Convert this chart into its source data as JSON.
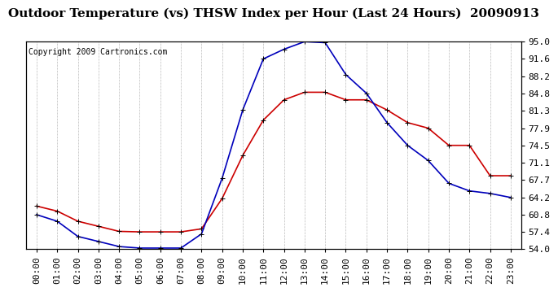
{
  "title": "Outdoor Temperature (vs) THSW Index per Hour (Last 24 Hours)  20090913",
  "copyright": "Copyright 2009 Cartronics.com",
  "background_color": "#ffffff",
  "plot_background": "#ffffff",
  "grid_color": "#aaaaaa",
  "x_labels": [
    "00:00",
    "01:00",
    "02:00",
    "03:00",
    "04:00",
    "05:00",
    "06:00",
    "07:00",
    "08:00",
    "09:00",
    "10:00",
    "11:00",
    "12:00",
    "13:00",
    "14:00",
    "15:00",
    "16:00",
    "17:00",
    "18:00",
    "19:00",
    "20:00",
    "21:00",
    "22:00",
    "23:00"
  ],
  "y_ticks": [
    54.0,
    57.4,
    60.8,
    64.2,
    67.7,
    71.1,
    74.5,
    77.9,
    81.3,
    84.8,
    88.2,
    91.6,
    95.0
  ],
  "y_min": 54.0,
  "y_max": 95.0,
  "outdoor_temp": [
    62.5,
    61.5,
    59.5,
    58.5,
    57.5,
    57.4,
    57.4,
    57.4,
    58.0,
    64.0,
    72.5,
    79.5,
    83.5,
    85.0,
    85.0,
    83.5,
    83.5,
    81.5,
    79.0,
    77.9,
    74.5,
    74.5,
    68.5,
    68.5
  ],
  "thsw_index": [
    60.8,
    59.5,
    56.5,
    55.5,
    54.5,
    54.2,
    54.2,
    54.2,
    57.0,
    68.0,
    81.5,
    91.6,
    93.5,
    95.0,
    94.8,
    88.5,
    84.8,
    79.0,
    74.5,
    71.5,
    67.0,
    65.5,
    65.0,
    64.2
  ],
  "temp_color": "#cc0000",
  "thsw_color": "#0000bb",
  "marker": "+",
  "marker_size": 4,
  "line_width": 1.2,
  "title_fontsize": 11,
  "tick_fontsize": 8,
  "copyright_fontsize": 7
}
